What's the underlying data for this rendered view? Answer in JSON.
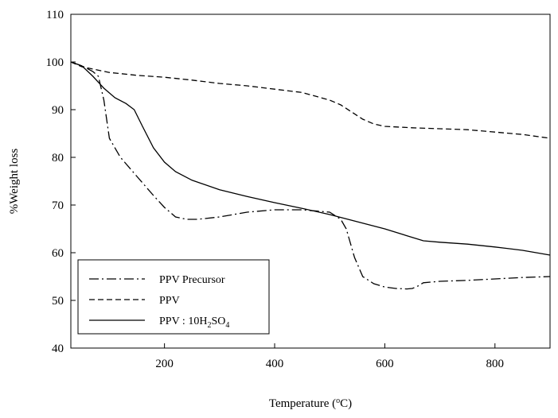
{
  "chart_data": {
    "type": "line",
    "xlabel": "Temperature (",
    "xlabel_super": "o",
    "xlabel_end": "C)",
    "ylabel": "%Weight loss",
    "xlim": [
      30,
      900
    ],
    "ylim": [
      40,
      110
    ],
    "x_ticks": [
      200,
      400,
      600,
      800
    ],
    "y_ticks": [
      40,
      50,
      60,
      70,
      80,
      90,
      100,
      110
    ],
    "grid": false,
    "legend_position": "bottom-left",
    "series": [
      {
        "name": "PPV Precursor",
        "dash": "dash-dot",
        "x": [
          30,
          50,
          70,
          80,
          90,
          100,
          120,
          150,
          180,
          200,
          220,
          240,
          260,
          300,
          350,
          400,
          450,
          500,
          520,
          530,
          545,
          560,
          580,
          600,
          620,
          640,
          650,
          660,
          670,
          700,
          750,
          800,
          850,
          900
        ],
        "y": [
          100,
          99.2,
          98,
          97,
          92,
          84,
          80,
          76,
          72,
          69.5,
          67.5,
          67,
          67,
          67.5,
          68.5,
          69,
          69,
          68.5,
          67,
          65,
          59,
          55,
          53.5,
          52.8,
          52.5,
          52.4,
          52.5,
          53,
          53.7,
          54,
          54.2,
          54.5,
          54.8,
          55
        ]
      },
      {
        "name": "PPV",
        "dash": "dashed",
        "x": [
          30,
          50,
          100,
          150,
          200,
          250,
          300,
          350,
          400,
          450,
          500,
          520,
          540,
          560,
          580,
          600,
          650,
          700,
          750,
          800,
          850,
          900
        ],
        "y": [
          100,
          99,
          97.8,
          97.2,
          96.8,
          96.2,
          95.5,
          95,
          94.3,
          93.6,
          92,
          91,
          89.5,
          88,
          87,
          86.5,
          86.2,
          86,
          85.8,
          85.3,
          84.8,
          84
        ]
      },
      {
        "name": "PPV : 10H",
        "name_sub": "2",
        "name_mid": "SO",
        "name_sub2": "4",
        "dash": "solid",
        "x": [
          30,
          50,
          70,
          90,
          110,
          130,
          145,
          160,
          180,
          200,
          220,
          250,
          300,
          350,
          400,
          450,
          500,
          550,
          600,
          650,
          670,
          700,
          750,
          800,
          850,
          900
        ],
        "y": [
          100,
          99.2,
          97,
          94.5,
          92.5,
          91.3,
          90,
          86.5,
          82,
          79,
          77,
          75.2,
          73.2,
          71.8,
          70.5,
          69.3,
          68,
          66.5,
          65,
          63.2,
          62.5,
          62.2,
          61.8,
          61.2,
          60.5,
          59.5
        ]
      }
    ]
  }
}
